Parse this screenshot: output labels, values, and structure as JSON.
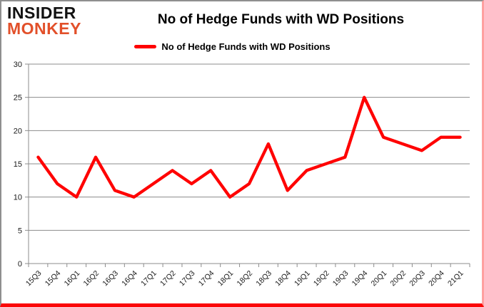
{
  "header": {
    "logo_line1": "INSIDER",
    "logo_line2": "MONKEY",
    "title": "No of Hedge Funds with WD Positions"
  },
  "legend": {
    "label": "No of Hedge Funds with WD Positions"
  },
  "colors": {
    "series_line": "#ff0000",
    "logo_black": "#111111",
    "logo_red": "#e2502a",
    "gridline": "#8c8c8c",
    "axis": "#8c8c8c",
    "tick_label": "#1a1a1a",
    "frame_gray": "#8f8f8f",
    "frame_bottom_red": "#fb0707",
    "frame_right_pink": "#ffa0a0"
  },
  "chart_data": {
    "type": "line",
    "title": "No of Hedge Funds with WD Positions",
    "xlabel": "",
    "ylabel": "",
    "categories": [
      "15Q3",
      "15Q4",
      "16Q1",
      "16Q2",
      "16Q3",
      "16Q4",
      "17Q1",
      "17Q2",
      "17Q3",
      "17Q4",
      "18Q1",
      "18Q2",
      "18Q3",
      "18Q4",
      "19Q1",
      "19Q2",
      "19Q3",
      "19Q4",
      "20Q1",
      "20Q2",
      "20Q3",
      "20Q4",
      "21Q1"
    ],
    "series": [
      {
        "name": "No of Hedge Funds with WD Positions",
        "values": [
          16,
          12,
          10,
          16,
          11,
          10,
          12,
          14,
          12,
          14,
          10,
          12,
          18,
          11,
          14,
          15,
          16,
          25,
          19,
          18,
          17,
          19,
          19
        ]
      }
    ],
    "ylim": [
      0,
      30
    ],
    "ytick_interval": 5,
    "yticks": [
      0,
      5,
      10,
      15,
      20,
      25,
      30
    ],
    "grid": true,
    "legend_position": "top-center"
  }
}
